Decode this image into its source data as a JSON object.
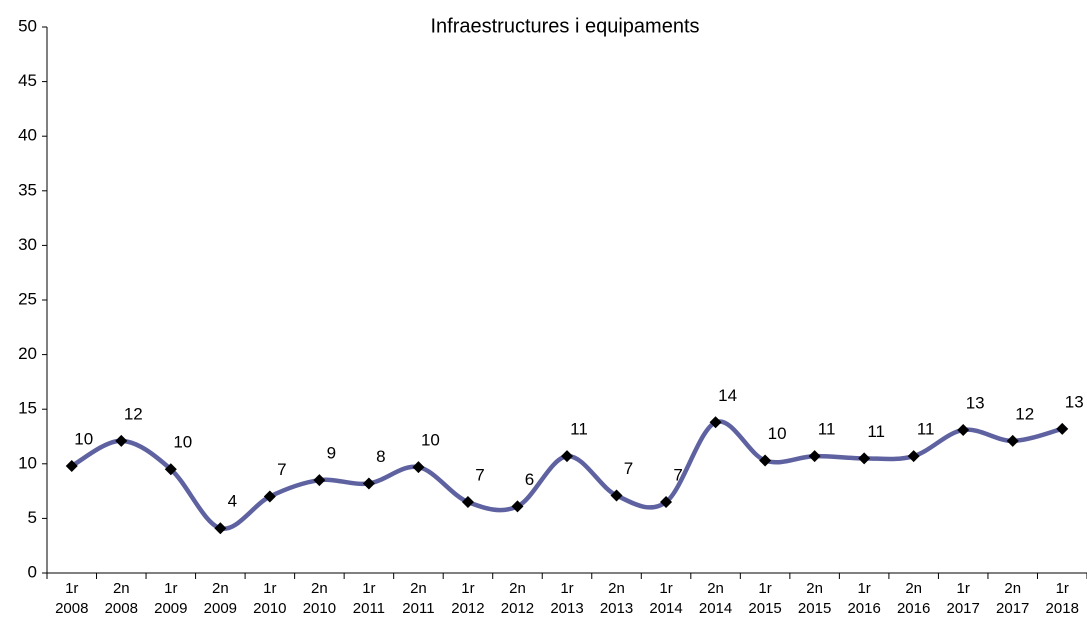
{
  "chart_data": {
    "type": "line",
    "title": "Infraestructures i equipaments",
    "categories": [
      [
        "1r",
        "2008"
      ],
      [
        "2n",
        "2008"
      ],
      [
        "1r",
        "2009"
      ],
      [
        "2n",
        "2009"
      ],
      [
        "1r",
        "2010"
      ],
      [
        "2n",
        "2010"
      ],
      [
        "1r",
        "2011"
      ],
      [
        "2n",
        "2011"
      ],
      [
        "1r",
        "2012"
      ],
      [
        "2n",
        "2012"
      ],
      [
        "1r",
        "2013"
      ],
      [
        "2n",
        "2013"
      ],
      [
        "1r",
        "2014"
      ],
      [
        "2n",
        "2014"
      ],
      [
        "1r",
        "2015"
      ],
      [
        "2n",
        "2015"
      ],
      [
        "1r",
        "2016"
      ],
      [
        "2n",
        "2016"
      ],
      [
        "1r",
        "2017"
      ],
      [
        "2n",
        "2017"
      ],
      [
        "1r",
        "2018"
      ]
    ],
    "values": [
      9.8,
      12.1,
      9.5,
      4.1,
      7.0,
      8.5,
      8.2,
      9.7,
      6.5,
      6.1,
      10.7,
      7.1,
      6.5,
      13.8,
      10.3,
      10.7,
      10.5,
      10.7,
      13.1,
      12.1,
      13.2
    ],
    "value_labels": [
      "10",
      "12",
      "10",
      "4",
      "7",
      "9",
      "8",
      "10",
      "7",
      "6",
      "11",
      "7",
      "7",
      "14",
      "10",
      "11",
      "11",
      "11",
      "13",
      "12",
      "13"
    ],
    "color": "#5f62a0",
    "marker_color": "#000000",
    "ylim": [
      0,
      50
    ],
    "yticks": [
      0,
      5,
      10,
      15,
      20,
      25,
      30,
      35,
      40,
      45,
      50
    ],
    "grid": false
  }
}
